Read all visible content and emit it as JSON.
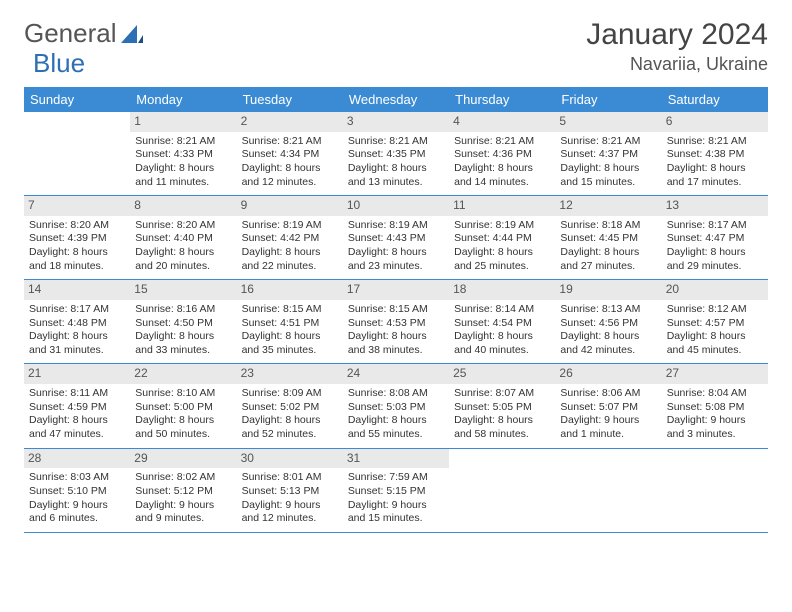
{
  "logo": {
    "text1": "General",
    "text2": "Blue"
  },
  "title": "January 2024",
  "location": "Navariia, Ukraine",
  "colors": {
    "header_blue": "#3b8bd4",
    "logo_blue": "#2c6fb5",
    "daynum_bg": "#e9e9e9",
    "text": "#333333"
  },
  "weekdays": [
    "Sunday",
    "Monday",
    "Tuesday",
    "Wednesday",
    "Thursday",
    "Friday",
    "Saturday"
  ],
  "weeks": [
    [
      {
        "empty": true
      },
      {
        "n": "1",
        "sr": "Sunrise: 8:21 AM",
        "ss": "Sunset: 4:33 PM",
        "dl": "Daylight: 8 hours and 11 minutes."
      },
      {
        "n": "2",
        "sr": "Sunrise: 8:21 AM",
        "ss": "Sunset: 4:34 PM",
        "dl": "Daylight: 8 hours and 12 minutes."
      },
      {
        "n": "3",
        "sr": "Sunrise: 8:21 AM",
        "ss": "Sunset: 4:35 PM",
        "dl": "Daylight: 8 hours and 13 minutes."
      },
      {
        "n": "4",
        "sr": "Sunrise: 8:21 AM",
        "ss": "Sunset: 4:36 PM",
        "dl": "Daylight: 8 hours and 14 minutes."
      },
      {
        "n": "5",
        "sr": "Sunrise: 8:21 AM",
        "ss": "Sunset: 4:37 PM",
        "dl": "Daylight: 8 hours and 15 minutes."
      },
      {
        "n": "6",
        "sr": "Sunrise: 8:21 AM",
        "ss": "Sunset: 4:38 PM",
        "dl": "Daylight: 8 hours and 17 minutes."
      }
    ],
    [
      {
        "n": "7",
        "sr": "Sunrise: 8:20 AM",
        "ss": "Sunset: 4:39 PM",
        "dl": "Daylight: 8 hours and 18 minutes."
      },
      {
        "n": "8",
        "sr": "Sunrise: 8:20 AM",
        "ss": "Sunset: 4:40 PM",
        "dl": "Daylight: 8 hours and 20 minutes."
      },
      {
        "n": "9",
        "sr": "Sunrise: 8:19 AM",
        "ss": "Sunset: 4:42 PM",
        "dl": "Daylight: 8 hours and 22 minutes."
      },
      {
        "n": "10",
        "sr": "Sunrise: 8:19 AM",
        "ss": "Sunset: 4:43 PM",
        "dl": "Daylight: 8 hours and 23 minutes."
      },
      {
        "n": "11",
        "sr": "Sunrise: 8:19 AM",
        "ss": "Sunset: 4:44 PM",
        "dl": "Daylight: 8 hours and 25 minutes."
      },
      {
        "n": "12",
        "sr": "Sunrise: 8:18 AM",
        "ss": "Sunset: 4:45 PM",
        "dl": "Daylight: 8 hours and 27 minutes."
      },
      {
        "n": "13",
        "sr": "Sunrise: 8:17 AM",
        "ss": "Sunset: 4:47 PM",
        "dl": "Daylight: 8 hours and 29 minutes."
      }
    ],
    [
      {
        "n": "14",
        "sr": "Sunrise: 8:17 AM",
        "ss": "Sunset: 4:48 PM",
        "dl": "Daylight: 8 hours and 31 minutes."
      },
      {
        "n": "15",
        "sr": "Sunrise: 8:16 AM",
        "ss": "Sunset: 4:50 PM",
        "dl": "Daylight: 8 hours and 33 minutes."
      },
      {
        "n": "16",
        "sr": "Sunrise: 8:15 AM",
        "ss": "Sunset: 4:51 PM",
        "dl": "Daylight: 8 hours and 35 minutes."
      },
      {
        "n": "17",
        "sr": "Sunrise: 8:15 AM",
        "ss": "Sunset: 4:53 PM",
        "dl": "Daylight: 8 hours and 38 minutes."
      },
      {
        "n": "18",
        "sr": "Sunrise: 8:14 AM",
        "ss": "Sunset: 4:54 PM",
        "dl": "Daylight: 8 hours and 40 minutes."
      },
      {
        "n": "19",
        "sr": "Sunrise: 8:13 AM",
        "ss": "Sunset: 4:56 PM",
        "dl": "Daylight: 8 hours and 42 minutes."
      },
      {
        "n": "20",
        "sr": "Sunrise: 8:12 AM",
        "ss": "Sunset: 4:57 PM",
        "dl": "Daylight: 8 hours and 45 minutes."
      }
    ],
    [
      {
        "n": "21",
        "sr": "Sunrise: 8:11 AM",
        "ss": "Sunset: 4:59 PM",
        "dl": "Daylight: 8 hours and 47 minutes."
      },
      {
        "n": "22",
        "sr": "Sunrise: 8:10 AM",
        "ss": "Sunset: 5:00 PM",
        "dl": "Daylight: 8 hours and 50 minutes."
      },
      {
        "n": "23",
        "sr": "Sunrise: 8:09 AM",
        "ss": "Sunset: 5:02 PM",
        "dl": "Daylight: 8 hours and 52 minutes."
      },
      {
        "n": "24",
        "sr": "Sunrise: 8:08 AM",
        "ss": "Sunset: 5:03 PM",
        "dl": "Daylight: 8 hours and 55 minutes."
      },
      {
        "n": "25",
        "sr": "Sunrise: 8:07 AM",
        "ss": "Sunset: 5:05 PM",
        "dl": "Daylight: 8 hours and 58 minutes."
      },
      {
        "n": "26",
        "sr": "Sunrise: 8:06 AM",
        "ss": "Sunset: 5:07 PM",
        "dl": "Daylight: 9 hours and 1 minute."
      },
      {
        "n": "27",
        "sr": "Sunrise: 8:04 AM",
        "ss": "Sunset: 5:08 PM",
        "dl": "Daylight: 9 hours and 3 minutes."
      }
    ],
    [
      {
        "n": "28",
        "sr": "Sunrise: 8:03 AM",
        "ss": "Sunset: 5:10 PM",
        "dl": "Daylight: 9 hours and 6 minutes."
      },
      {
        "n": "29",
        "sr": "Sunrise: 8:02 AM",
        "ss": "Sunset: 5:12 PM",
        "dl": "Daylight: 9 hours and 9 minutes."
      },
      {
        "n": "30",
        "sr": "Sunrise: 8:01 AM",
        "ss": "Sunset: 5:13 PM",
        "dl": "Daylight: 9 hours and 12 minutes."
      },
      {
        "n": "31",
        "sr": "Sunrise: 7:59 AM",
        "ss": "Sunset: 5:15 PM",
        "dl": "Daylight: 9 hours and 15 minutes."
      },
      {
        "empty": true
      },
      {
        "empty": true
      },
      {
        "empty": true
      }
    ]
  ]
}
